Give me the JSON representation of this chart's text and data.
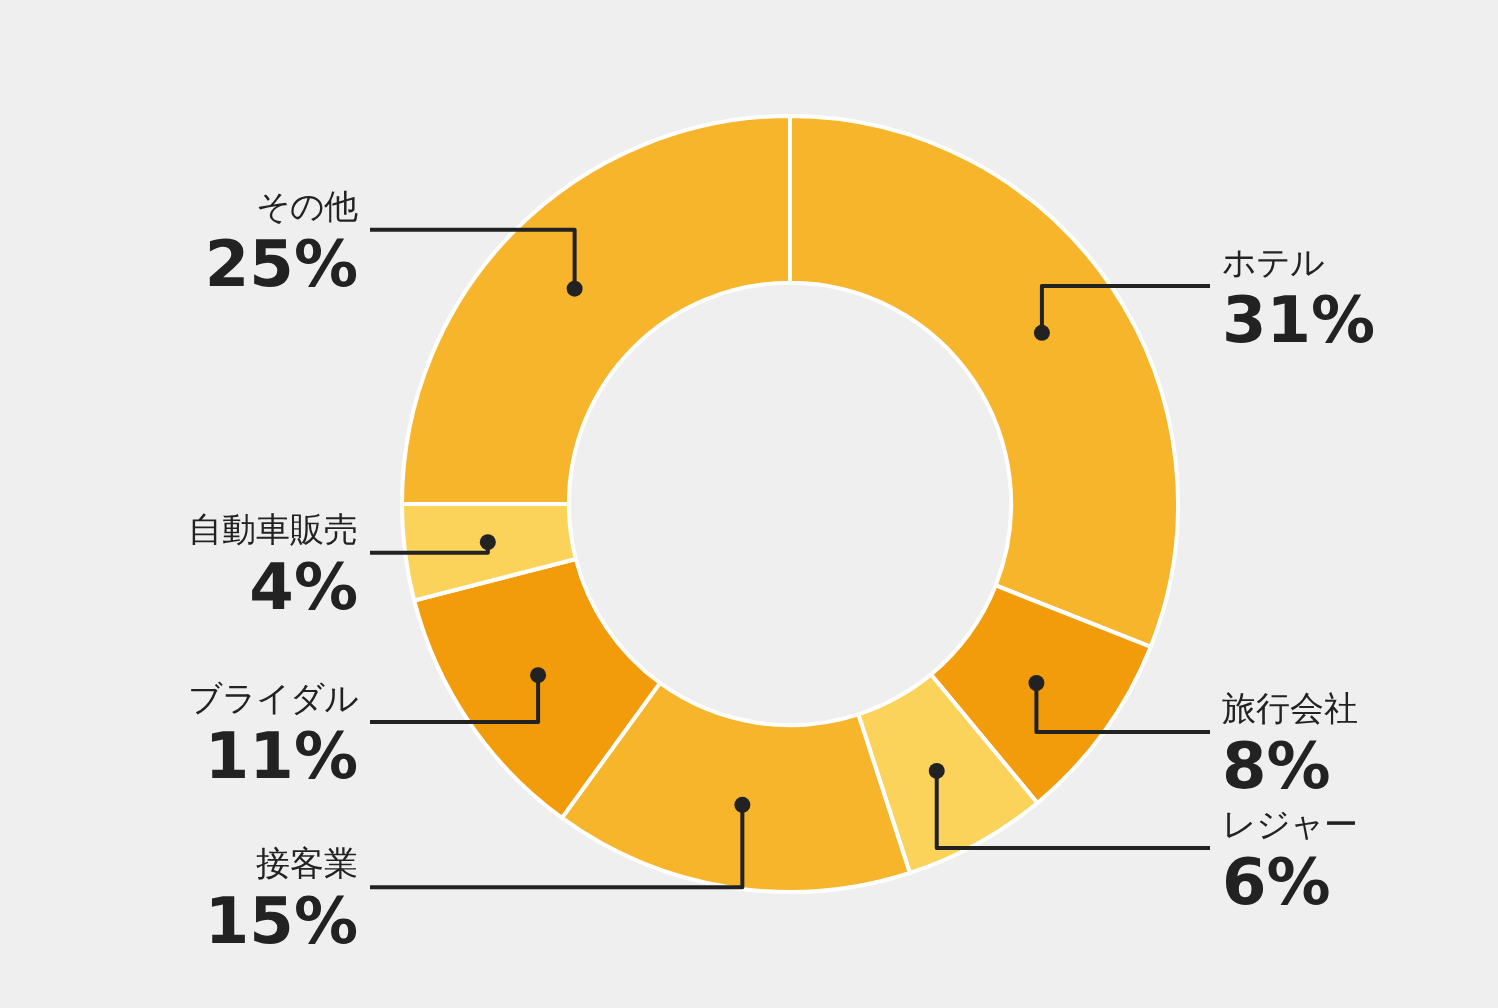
{
  "chart_data": {
    "type": "donut",
    "categories": [
      "ホテル",
      "旅行会社",
      "レジャー",
      "接客業",
      "ブライダル",
      "自動車販売",
      "その他"
    ],
    "values": [
      31,
      8,
      6,
      15,
      11,
      4,
      25
    ],
    "value_labels": [
      "31%",
      "8%",
      "6%",
      "15%",
      "11%",
      "4%",
      "25%"
    ],
    "colors": [
      "#f7b52c",
      "#f39c0b",
      "#fbd25a",
      "#f7b52c",
      "#f39c0b",
      "#fbd25a",
      "#f7b52c"
    ],
    "legend": false
  }
}
